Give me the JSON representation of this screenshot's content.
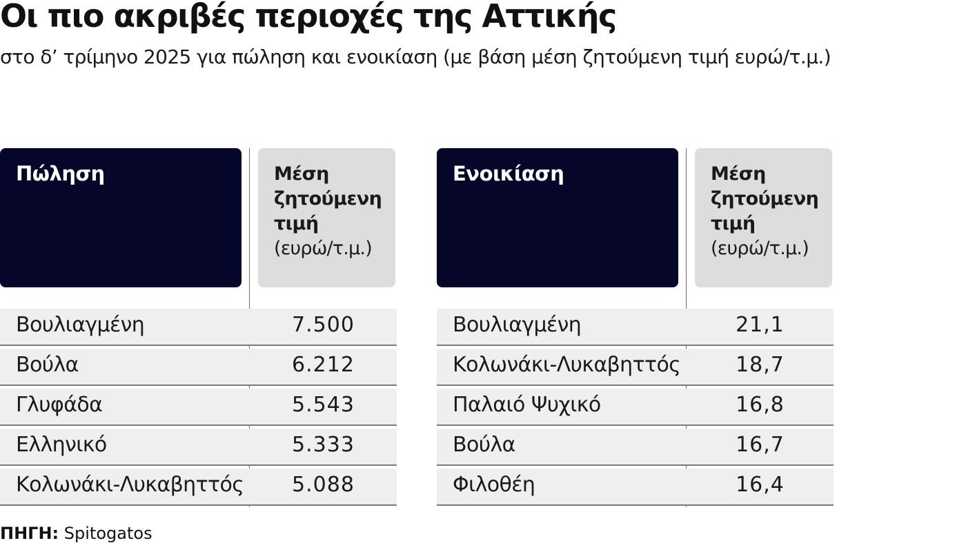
{
  "title": "Οι πιο ακριβές περιοχές της Αττικής",
  "subtitle": "στο δ’ τρίμηνο 2025 για πώληση και ενοικίαση (με βάση μέση ζητούμενη τιμή ευρώ/τ.μ.)",
  "source": {
    "label": "ΠΗΓΗ:",
    "text": "Spitogatos"
  },
  "colors": {
    "header_dark": "#06062b",
    "header_grey": "#dddddd",
    "row_bg": "#efefef"
  },
  "chart_data": [
    {
      "type": "table",
      "columns": [
        "Πώληση",
        "Μέση ζητούμενη τιμή",
        "(ευρώ/τ.μ.)"
      ],
      "header_main": "Πώληση",
      "header_value_bold": "Μέση ζητούμενη τιμή",
      "header_value_unit": "(ευρώ/τ.μ.)",
      "rows": [
        {
          "name": "Βουλιαγμένη",
          "value": "7.500"
        },
        {
          "name": "Βούλα",
          "value": "6.212"
        },
        {
          "name": "Γλυφάδα",
          "value": "5.543"
        },
        {
          "name": "Ελληνικό",
          "value": "5.333"
        },
        {
          "name": "Κολωνάκι-Λυκαβηττός",
          "value": "5.088"
        }
      ]
    },
    {
      "type": "table",
      "columns": [
        "Ενοικίαση",
        "Μέση ζητούμενη τιμή",
        "(ευρώ/τ.μ.)"
      ],
      "header_main": "Ενοικίαση",
      "header_value_bold": "Μέση ζητούμενη τιμή",
      "header_value_unit": "(ευρώ/τ.μ.)",
      "rows": [
        {
          "name": "Βουλιαγμένη",
          "value": "21,1"
        },
        {
          "name": "Κολωνάκι-Λυκαβηττός",
          "value": "18,7"
        },
        {
          "name": "Παλαιό Ψυχικό",
          "value": "16,8"
        },
        {
          "name": "Βούλα",
          "value": "16,7"
        },
        {
          "name": "Φιλοθέη",
          "value": "16,4"
        }
      ]
    }
  ]
}
